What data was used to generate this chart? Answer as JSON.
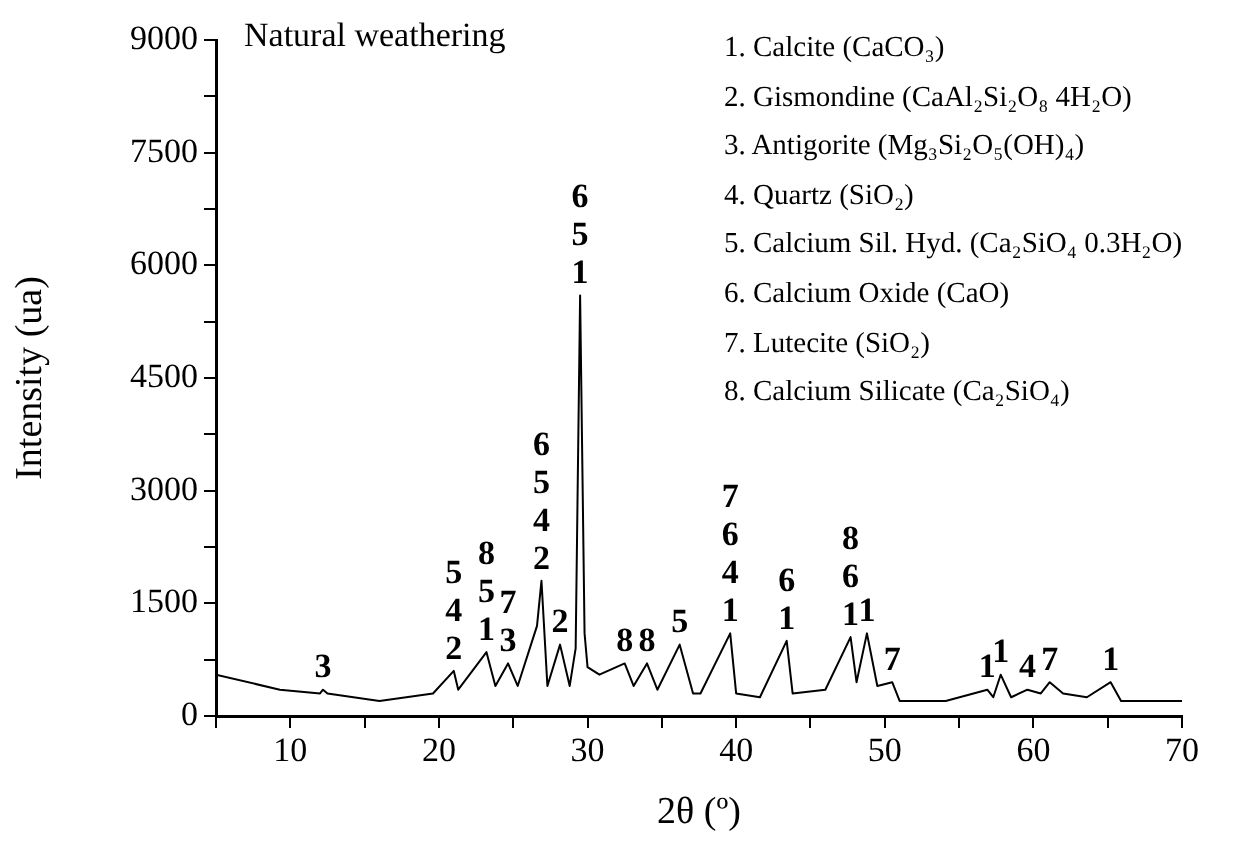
{
  "chart_data": {
    "type": "line",
    "title": "Natural weathering",
    "xlabel": "2θ (º)",
    "ylabel": "Intensity (ua)",
    "xlim": [
      5,
      70
    ],
    "ylim": [
      0,
      9000
    ],
    "xticks": [
      {
        "value": 5,
        "label": null
      },
      10,
      {
        "value": 15,
        "label": null
      },
      20,
      {
        "value": 25,
        "label": null
      },
      30,
      {
        "value": 35,
        "label": null
      },
      40,
      {
        "value": 45,
        "label": null
      },
      50,
      {
        "value": 55,
        "label": null
      },
      60,
      {
        "value": 65,
        "label": null
      },
      70
    ],
    "yticks": [
      0,
      {
        "value": 750,
        "label": null
      },
      1500,
      {
        "value": 2250,
        "label": null
      },
      3000,
      {
        "value": 3750,
        "label": null
      },
      4500,
      {
        "value": 5250,
        "label": null
      },
      6000,
      {
        "value": 6750,
        "label": null
      },
      7500,
      {
        "value": 8250,
        "label": null
      },
      9000
    ],
    "grid": false,
    "legend": false,
    "marker": "none",
    "line_style": "solid",
    "series": [
      {
        "color": "#000000",
        "x": [
          5.0,
          9.3,
          12.0,
          12.2,
          12.5,
          16.0,
          19.6,
          21.0,
          21.3,
          23.2,
          23.8,
          24.65,
          25.3,
          26.6,
          26.9,
          27.3,
          28.15,
          28.8,
          29.2,
          29.5,
          29.8,
          30.0,
          30.8,
          32.5,
          33.1,
          34.0,
          34.7,
          36.2,
          37.1,
          37.6,
          39.6,
          40.0,
          41.6,
          43.4,
          43.8,
          46.0,
          47.7,
          48.1,
          48.8,
          49.5,
          50.5,
          51.0,
          54.1,
          56.9,
          57.3,
          57.8,
          58.5,
          59.6,
          60.5,
          61.1,
          62.0,
          63.6,
          65.2,
          65.9,
          67.7,
          68.5,
          70.0
        ],
        "values": [
          550,
          350,
          300,
          350,
          300,
          200,
          300,
          600,
          350,
          850,
          400,
          700,
          400,
          1200,
          1800,
          400,
          950,
          400,
          900,
          5600,
          1100,
          650,
          550,
          700,
          400,
          700,
          350,
          950,
          300,
          300,
          1100,
          300,
          250,
          1000,
          300,
          350,
          1050,
          450,
          1100,
          400,
          450,
          200,
          200,
          350,
          250,
          550,
          250,
          350,
          300,
          450,
          300,
          250,
          450,
          200,
          200,
          200,
          200
        ]
      }
    ],
    "annotations": [
      "1. Calcite (CaCO₃)",
      "2. Gismondine (CaAl₂Si₂O₈ 4H₂O)",
      "3. Antigorite (Mg₃Si₂O₅(OH)₄)",
      "4. Quartz (SiO₂)",
      "5. Calcium Sil. Hyd. (Ca₂SiO₄ 0.3H₂O)",
      "6. Calcium Oxide (CaO)",
      "7. Lutecite (SiO₂)",
      "8. Calcium Silicate (Ca₂SiO₄)",
      {
        "text": "3",
        "x": 12.2,
        "y": 350
      },
      {
        "text": "5\n4\n2",
        "x": 21.0,
        "y": 600
      },
      {
        "text": "8\n5\n1",
        "x": 23.2,
        "y": 850
      },
      {
        "text": "7\n3",
        "x": 24.65,
        "y": 700
      },
      {
        "text": "6\n5\n4\n2",
        "x": 26.9,
        "y": 1800
      },
      {
        "text": "2",
        "x": 28.15,
        "y": 950
      },
      {
        "text": "6\n5\n1",
        "x": 29.5,
        "y": 5600
      },
      {
        "text": "8",
        "x": 32.5,
        "y": 700
      },
      {
        "text": "8",
        "x": 34.0,
        "y": 700
      },
      {
        "text": "5",
        "x": 36.2,
        "y": 950
      },
      {
        "text": "7\n6\n4\n1",
        "x": 39.6,
        "y": 1100
      },
      {
        "text": "6\n1",
        "x": 43.4,
        "y": 1000
      },
      {
        "text": "8\n6\n1",
        "x": 47.7,
        "y": 1050
      },
      {
        "text": "1",
        "x": 48.8,
        "y": 1100
      },
      {
        "text": "7",
        "x": 50.5,
        "y": 450
      },
      {
        "text": "1",
        "x": 56.9,
        "y": 350
      },
      {
        "text": "1",
        "x": 57.8,
        "y": 550
      },
      {
        "text": "4",
        "x": 59.6,
        "y": 350
      },
      {
        "text": "7",
        "x": 61.1,
        "y": 450
      },
      {
        "text": "1",
        "x": 65.2,
        "y": 450
      }
    ]
  }
}
